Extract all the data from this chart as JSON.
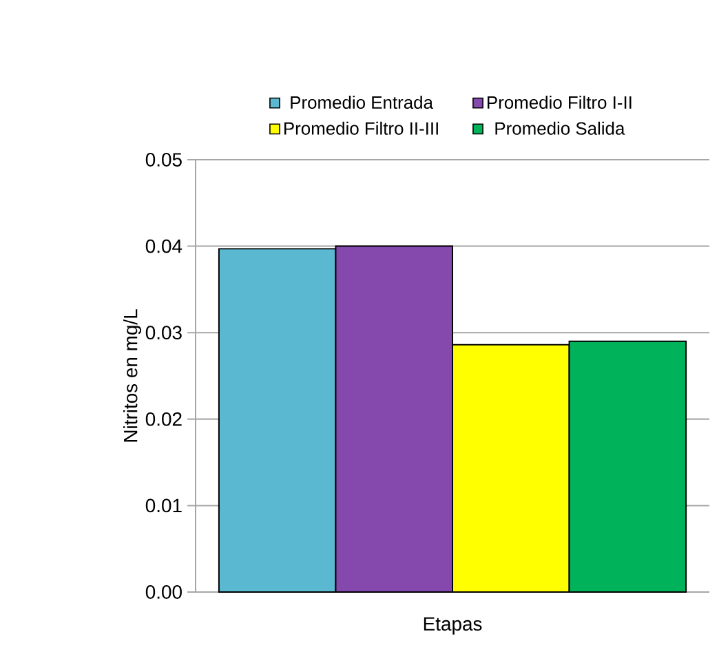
{
  "chart_data": {
    "type": "bar",
    "xlabel": "Etapas",
    "ylabel": "Nitritos en mg/L",
    "categories": [
      null
    ],
    "series": [
      {
        "name": "Promedio Entrada",
        "color": "#5bb8d1",
        "values": [
          0.0397
        ]
      },
      {
        "name": "Promedio Filtro I-II",
        "color": "#8549ad",
        "values": [
          0.04
        ]
      },
      {
        "name": "Promedio Filtro II-III",
        "color": "#ffff00",
        "values": [
          0.0286
        ]
      },
      {
        "name": "Promedio Salida",
        "color": "#00b35a",
        "values": [
          0.029
        ]
      }
    ],
    "ylim": [
      0,
      0.05
    ],
    "yticks": [
      {
        "value": 0,
        "label": "0.00"
      },
      {
        "value": 0.01,
        "label": "0.01"
      },
      {
        "value": 0.02,
        "label": "0.02"
      },
      {
        "value": 0.03,
        "label": "0.03"
      },
      {
        "value": 0.04,
        "label": "0.04"
      },
      {
        "value": 0.05,
        "label": "0.05"
      }
    ],
    "grid": "y",
    "legend": "top"
  }
}
